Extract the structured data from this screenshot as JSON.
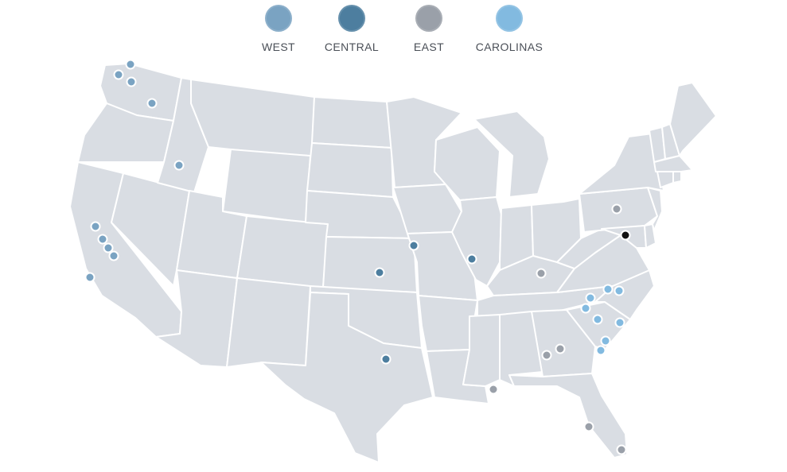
{
  "legend": {
    "items": [
      {
        "key": "west",
        "label": "WEST",
        "color": "#7aa3c2"
      },
      {
        "key": "central",
        "label": "CENTRAL",
        "color": "#4d7e9f"
      },
      {
        "key": "east",
        "label": "EAST",
        "color": "#9aa0a9"
      },
      {
        "key": "carolinas",
        "label": "CAROLINAS",
        "color": "#82bae0"
      }
    ]
  },
  "map": {
    "fill_color": "#d9dde3",
    "border_color": "#ffffff",
    "highlight_color": "#111111"
  }
}
